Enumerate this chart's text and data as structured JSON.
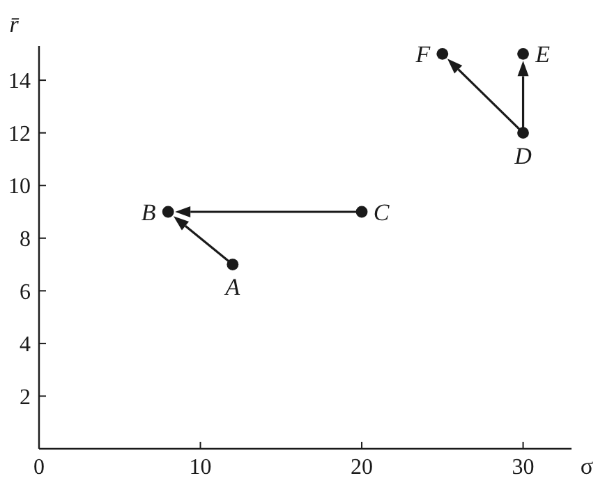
{
  "chart_data": {
    "type": "scatter",
    "xlabel": "σ",
    "ylabel": "r̄",
    "xlim": [
      0,
      33
    ],
    "ylim": [
      0,
      15.3
    ],
    "xticks": [
      0,
      10,
      20,
      30
    ],
    "yticks": [
      2,
      4,
      6,
      8,
      10,
      12,
      14
    ],
    "marker": "circle",
    "grid": false,
    "series": [
      {
        "color": "#1a1a1a",
        "x": [
          12,
          8,
          20,
          30,
          30,
          25
        ],
        "values": [
          7,
          9,
          9,
          12,
          15,
          15
        ]
      }
    ],
    "annotations": [
      {
        "text": "A",
        "x": 12,
        "y": 7
      },
      {
        "text": "B",
        "x": 8,
        "y": 9
      },
      {
        "text": "C",
        "x": 20,
        "y": 9
      },
      {
        "text": "D",
        "x": 30,
        "y": 12
      },
      {
        "text": "E",
        "x": 30,
        "y": 15
      },
      {
        "text": "F",
        "x": 25,
        "y": 15
      }
    ]
  }
}
